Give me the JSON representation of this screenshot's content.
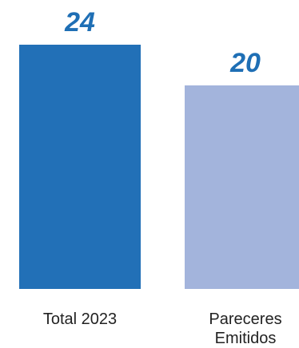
{
  "chart_data": {
    "type": "bar",
    "categories": [
      "Total 2023",
      "Pareceres Emitidos"
    ],
    "category_lines": [
      [
        "Total 2023"
      ],
      [
        "Pareceres",
        "Emitidos"
      ]
    ],
    "values": [
      24,
      20
    ],
    "bar_colors": [
      "#2270b7",
      "#a3b4dc"
    ],
    "value_label_color": "#1f6fb5",
    "value_labels": [
      "24",
      "20"
    ],
    "title": "",
    "xlabel": "",
    "ylabel": "",
    "grid": false,
    "legend": "none"
  }
}
